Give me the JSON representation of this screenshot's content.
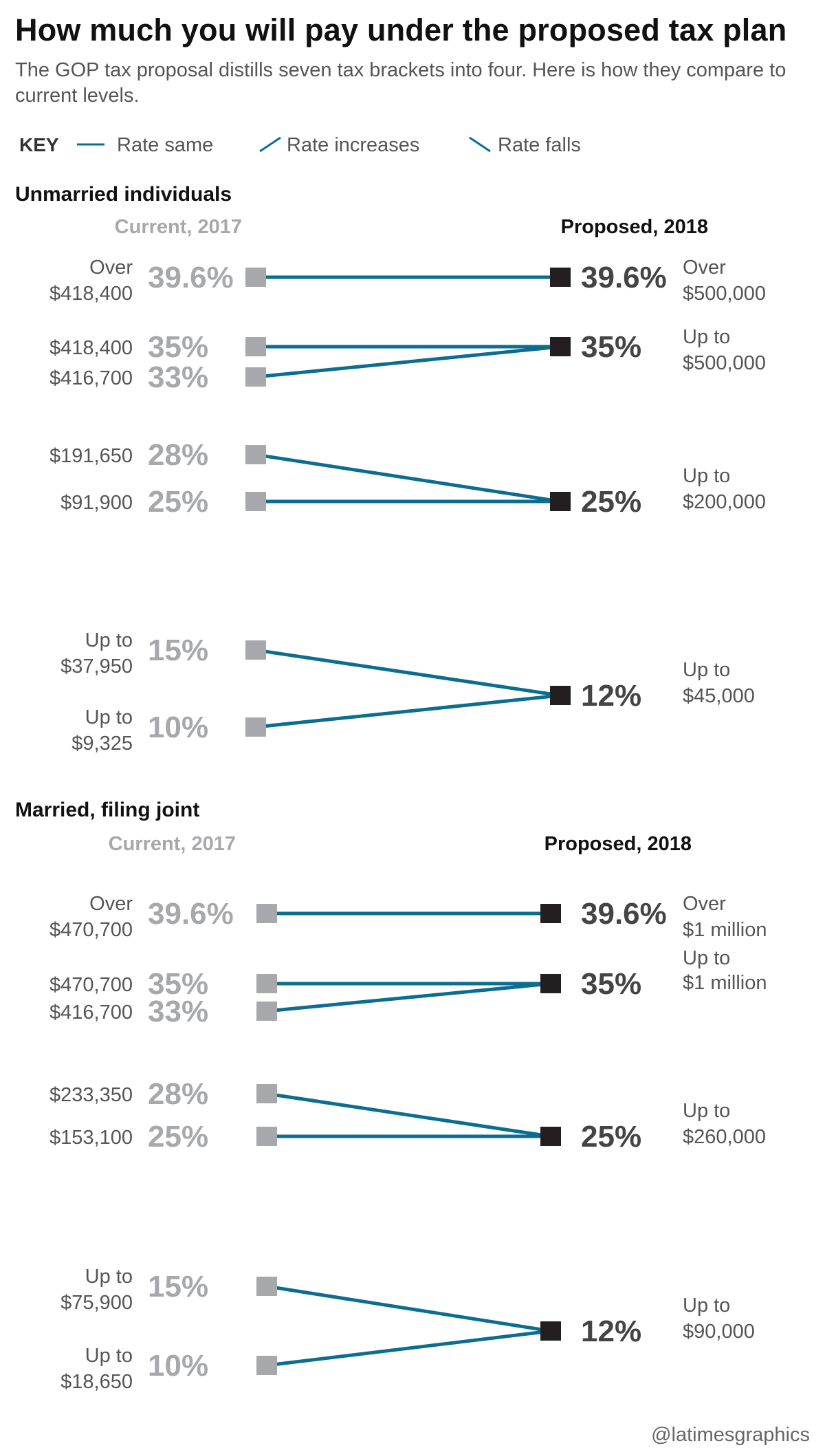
{
  "title": "How much you will pay under the proposed tax plan",
  "subtitle": "The GOP tax proposal distills seven tax brackets into four. Here is how they compare to current levels.",
  "key": {
    "label": "KEY",
    "items": [
      {
        "label": "Rate same",
        "direction": "same"
      },
      {
        "label": "Rate increases",
        "direction": "up"
      },
      {
        "label": "Rate falls",
        "direction": "down"
      }
    ]
  },
  "credit": "@latimesgraphics",
  "colors": {
    "line": "#0b6d8f",
    "current_marker": "#a7a8ab",
    "proposed_marker": "#231f20",
    "current_text": "#a7a8ab",
    "proposed_text": "#444444",
    "label_text": "#555555",
    "heading_text": "#111111"
  },
  "chart_data": {
    "type": "slope",
    "panels": [
      {
        "title": "Unmarried individuals",
        "left_header": "Current, 2017",
        "right_header": "Proposed, 2018",
        "current": [
          {
            "rate": "39.6%",
            "threshold": [
              "Over",
              "$418,400"
            ]
          },
          {
            "rate": "35%",
            "threshold": [
              "$418,400"
            ]
          },
          {
            "rate": "33%",
            "threshold": [
              "$416,700"
            ]
          },
          {
            "rate": "28%",
            "threshold": [
              "$191,650"
            ]
          },
          {
            "rate": "25%",
            "threshold": [
              "$91,900"
            ]
          },
          {
            "rate": "15%",
            "threshold": [
              "Up to",
              "$37,950"
            ]
          },
          {
            "rate": "10%",
            "threshold": [
              "Up to",
              "$9,325"
            ]
          }
        ],
        "proposed": [
          {
            "rate": "39.6%",
            "threshold": [
              "Over",
              "$500,000"
            ]
          },
          {
            "rate": "35%",
            "threshold": [
              "Up to",
              "$500,000"
            ]
          },
          {
            "rate": "25%",
            "threshold": [
              "Up to",
              "$200,000"
            ]
          },
          {
            "rate": "12%",
            "threshold": [
              "Up to",
              "$45,000"
            ]
          }
        ],
        "links": [
          {
            "from": "39.6%",
            "to": "39.6%"
          },
          {
            "from": "35%",
            "to": "35%"
          },
          {
            "from": "33%",
            "to": "35%"
          },
          {
            "from": "28%",
            "to": "25%"
          },
          {
            "from": "25%",
            "to": "25%"
          },
          {
            "from": "15%",
            "to": "12%"
          },
          {
            "from": "10%",
            "to": "12%"
          }
        ]
      },
      {
        "title": "Married, filing joint",
        "left_header": "Current, 2017",
        "right_header": "Proposed, 2018",
        "current": [
          {
            "rate": "39.6%",
            "threshold": [
              "Over",
              "$470,700"
            ]
          },
          {
            "rate": "35%",
            "threshold": [
              "$470,700"
            ]
          },
          {
            "rate": "33%",
            "threshold": [
              "$416,700"
            ]
          },
          {
            "rate": "28%",
            "threshold": [
              "$233,350"
            ]
          },
          {
            "rate": "25%",
            "threshold": [
              "$153,100"
            ]
          },
          {
            "rate": "15%",
            "threshold": [
              "Up to",
              "$75,900"
            ]
          },
          {
            "rate": "10%",
            "threshold": [
              "Up to",
              "$18,650"
            ]
          }
        ],
        "proposed": [
          {
            "rate": "39.6%",
            "threshold": [
              "Over",
              "$1 million"
            ]
          },
          {
            "rate": "35%",
            "threshold": [
              "Up to",
              "$1 million"
            ]
          },
          {
            "rate": "25%",
            "threshold": [
              "Up to",
              "$260,000"
            ]
          },
          {
            "rate": "12%",
            "threshold": [
              "Up to",
              "$90,000"
            ]
          }
        ],
        "links": [
          {
            "from": "39.6%",
            "to": "39.6%"
          },
          {
            "from": "35%",
            "to": "35%"
          },
          {
            "from": "33%",
            "to": "35%"
          },
          {
            "from": "28%",
            "to": "25%"
          },
          {
            "from": "25%",
            "to": "25%"
          },
          {
            "from": "15%",
            "to": "12%"
          },
          {
            "from": "10%",
            "to": "12%"
          }
        ]
      }
    ]
  }
}
